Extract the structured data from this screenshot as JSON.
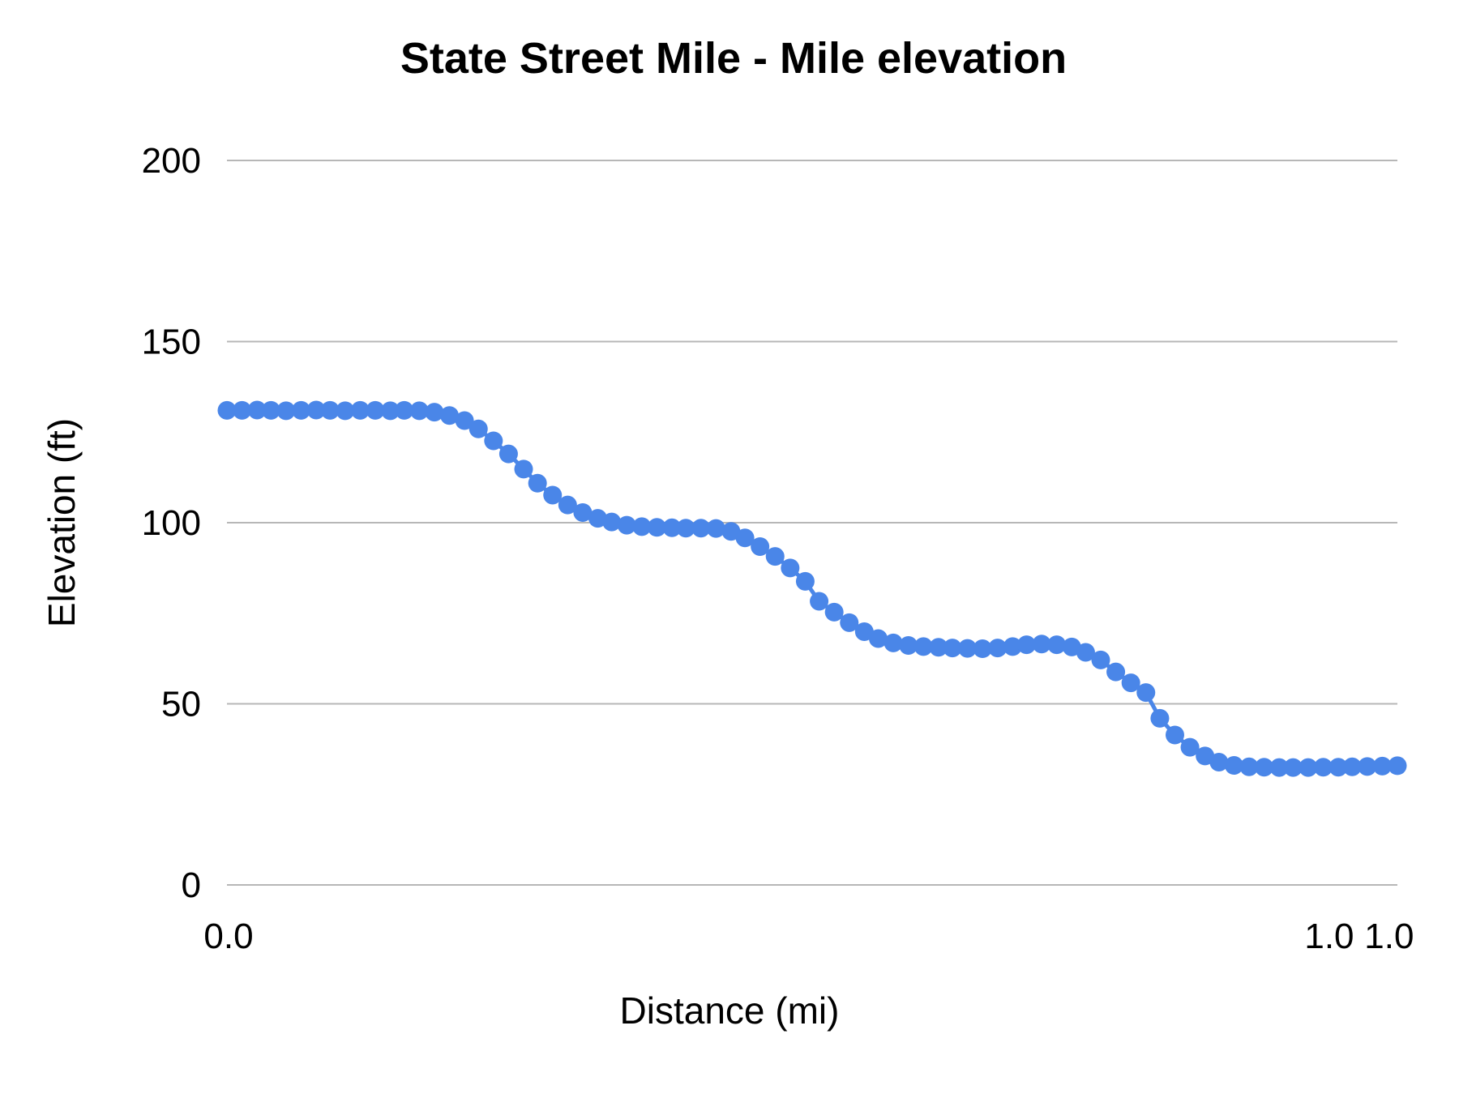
{
  "chart_data": {
    "type": "line",
    "title": "State Street Mile - Mile elevation",
    "xlabel": "Distance (mi)",
    "ylabel": "Elevation (ft)",
    "xlim": [
      0,
      1.01
    ],
    "ylim": [
      0,
      200
    ],
    "yticks": [
      0,
      50,
      100,
      150,
      200
    ],
    "xticks": [
      {
        "label": "0.0",
        "pos": 0.0014
      },
      {
        "label": "1.0",
        "pos": 0.9418
      },
      {
        "label": "1.0",
        "pos": 0.993
      }
    ],
    "grid": "horizontal",
    "legend": "none",
    "series_color": "#4A86E8",
    "gridline_color": "#B7B7B7",
    "point_radius_px": 11.5,
    "points": [
      [
        0.0,
        131.0
      ],
      [
        0.013,
        131.0
      ],
      [
        0.026,
        131.1
      ],
      [
        0.038,
        131.0
      ],
      [
        0.051,
        130.9
      ],
      [
        0.064,
        131.0
      ],
      [
        0.077,
        131.1
      ],
      [
        0.089,
        131.0
      ],
      [
        0.102,
        130.9
      ],
      [
        0.115,
        131.0
      ],
      [
        0.128,
        131.0
      ],
      [
        0.141,
        130.9
      ],
      [
        0.153,
        131.0
      ],
      [
        0.166,
        130.9
      ],
      [
        0.179,
        130.5
      ],
      [
        0.192,
        129.6
      ],
      [
        0.205,
        128.2
      ],
      [
        0.217,
        125.9
      ],
      [
        0.23,
        122.6
      ],
      [
        0.243,
        119.0
      ],
      [
        0.256,
        114.8
      ],
      [
        0.268,
        110.9
      ],
      [
        0.281,
        107.6
      ],
      [
        0.294,
        104.9
      ],
      [
        0.307,
        102.8
      ],
      [
        0.32,
        101.2
      ],
      [
        0.332,
        100.2
      ],
      [
        0.345,
        99.3
      ],
      [
        0.358,
        98.9
      ],
      [
        0.371,
        98.7
      ],
      [
        0.384,
        98.6
      ],
      [
        0.396,
        98.5
      ],
      [
        0.409,
        98.5
      ],
      [
        0.422,
        98.4
      ],
      [
        0.435,
        97.6
      ],
      [
        0.447,
        95.8
      ],
      [
        0.46,
        93.4
      ],
      [
        0.473,
        90.7
      ],
      [
        0.486,
        87.5
      ],
      [
        0.499,
        83.8
      ],
      [
        0.511,
        78.3
      ],
      [
        0.524,
        75.3
      ],
      [
        0.537,
        72.4
      ],
      [
        0.55,
        69.9
      ],
      [
        0.562,
        68.0
      ],
      [
        0.575,
        66.8
      ],
      [
        0.588,
        66.1
      ],
      [
        0.601,
        65.8
      ],
      [
        0.614,
        65.6
      ],
      [
        0.626,
        65.4
      ],
      [
        0.639,
        65.3
      ],
      [
        0.652,
        65.2
      ],
      [
        0.665,
        65.4
      ],
      [
        0.678,
        65.8
      ],
      [
        0.69,
        66.3
      ],
      [
        0.703,
        66.5
      ],
      [
        0.716,
        66.3
      ],
      [
        0.729,
        65.7
      ],
      [
        0.741,
        64.2
      ],
      [
        0.754,
        62.1
      ],
      [
        0.767,
        58.8
      ],
      [
        0.78,
        55.8
      ],
      [
        0.793,
        53.1
      ],
      [
        0.805,
        46.0
      ],
      [
        0.818,
        41.4
      ],
      [
        0.831,
        38.0
      ],
      [
        0.844,
        35.6
      ],
      [
        0.856,
        33.9
      ],
      [
        0.869,
        33.0
      ],
      [
        0.882,
        32.6
      ],
      [
        0.895,
        32.5
      ],
      [
        0.908,
        32.4
      ],
      [
        0.92,
        32.4
      ],
      [
        0.933,
        32.4
      ],
      [
        0.946,
        32.5
      ],
      [
        0.959,
        32.5
      ],
      [
        0.971,
        32.6
      ],
      [
        0.984,
        32.7
      ],
      [
        0.997,
        32.8
      ],
      [
        1.01,
        32.9
      ]
    ]
  }
}
